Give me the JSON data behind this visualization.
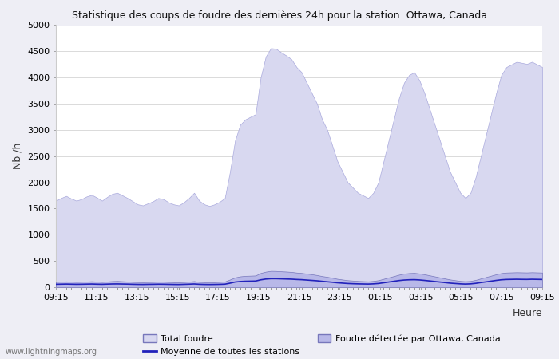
{
  "title": "Statistique des coups de foudre des dernières 24h pour la station: Ottawa, Canada",
  "ylabel": "Nb /h",
  "xlabel": "Heure",
  "watermark": "www.lightningmaps.org",
  "ylim": [
    0,
    5000
  ],
  "yticks": [
    0,
    500,
    1000,
    1500,
    2000,
    2500,
    3000,
    3500,
    4000,
    4500,
    5000
  ],
  "xtick_labels": [
    "09:15",
    "11:15",
    "13:15",
    "15:15",
    "17:15",
    "19:15",
    "21:15",
    "23:15",
    "01:15",
    "03:15",
    "05:15",
    "07:15",
    "09:15"
  ],
  "bg_color": "#eeeef5",
  "plot_bg_color": "#ffffff",
  "total_foudre_color": "#d8d8f0",
  "total_foudre_edge": "#aaaadd",
  "detected_color": "#b8b8e8",
  "detected_edge": "#7777bb",
  "moyenne_color": "#2222bb",
  "legend_labels": [
    "Total foudre",
    "Moyenne de toutes les stations",
    "Foudre détectée par Ottawa, Canada"
  ],
  "total_foudre_values": [
    1650,
    1700,
    1740,
    1690,
    1650,
    1680,
    1730,
    1760,
    1710,
    1650,
    1720,
    1780,
    1800,
    1750,
    1700,
    1640,
    1580,
    1560,
    1600,
    1640,
    1700,
    1680,
    1620,
    1580,
    1560,
    1620,
    1700,
    1800,
    1650,
    1580,
    1550,
    1580,
    1630,
    1700,
    2200,
    2800,
    3100,
    3200,
    3250,
    3300,
    4000,
    4400,
    4560,
    4550,
    4480,
    4420,
    4350,
    4200,
    4100,
    3900,
    3700,
    3500,
    3200,
    3000,
    2700,
    2400,
    2200,
    2000,
    1900,
    1800,
    1750,
    1700,
    1800,
    2000,
    2400,
    2800,
    3200,
    3600,
    3900,
    4050,
    4100,
    3950,
    3700,
    3400,
    3100,
    2800,
    2500,
    2200,
    2000,
    1800,
    1700,
    1800,
    2100,
    2500,
    2900,
    3300,
    3700,
    4050,
    4200,
    4250,
    4300,
    4280,
    4260,
    4300,
    4250,
    4200
  ],
  "detected_values": [
    100,
    105,
    110,
    105,
    100,
    103,
    108,
    112,
    107,
    100,
    108,
    115,
    118,
    113,
    108,
    100,
    96,
    94,
    97,
    100,
    106,
    104,
    98,
    94,
    92,
    98,
    106,
    115,
    100,
    94,
    91,
    94,
    100,
    108,
    145,
    185,
    205,
    215,
    218,
    222,
    270,
    295,
    310,
    308,
    302,
    297,
    290,
    278,
    270,
    258,
    245,
    230,
    210,
    196,
    178,
    158,
    145,
    132,
    125,
    118,
    114,
    110,
    118,
    132,
    158,
    185,
    210,
    237,
    258,
    268,
    272,
    261,
    245,
    225,
    205,
    185,
    165,
    146,
    132,
    118,
    112,
    118,
    138,
    165,
    192,
    218,
    245,
    268,
    278,
    281,
    284,
    282,
    280,
    284,
    281,
    278
  ],
  "moyenne_values": [
    55,
    57,
    59,
    57,
    55,
    56,
    58,
    60,
    57,
    55,
    58,
    61,
    62,
    60,
    58,
    55,
    53,
    52,
    54,
    55,
    57,
    56,
    54,
    52,
    51,
    54,
    57,
    61,
    55,
    52,
    51,
    52,
    54,
    57,
    76,
    98,
    108,
    113,
    115,
    117,
    140,
    155,
    162,
    162,
    159,
    156,
    153,
    147,
    143,
    136,
    129,
    122,
    112,
    103,
    94,
    84,
    77,
    70,
    66,
    63,
    61,
    59,
    63,
    70,
    84,
    98,
    112,
    126,
    136,
    141,
    143,
    138,
    129,
    119,
    108,
    98,
    88,
    77,
    70,
    63,
    59,
    63,
    73,
    88,
    101,
    115,
    129,
    141,
    147,
    149,
    151,
    149,
    148,
    151,
    149,
    147
  ],
  "n_points": 96
}
